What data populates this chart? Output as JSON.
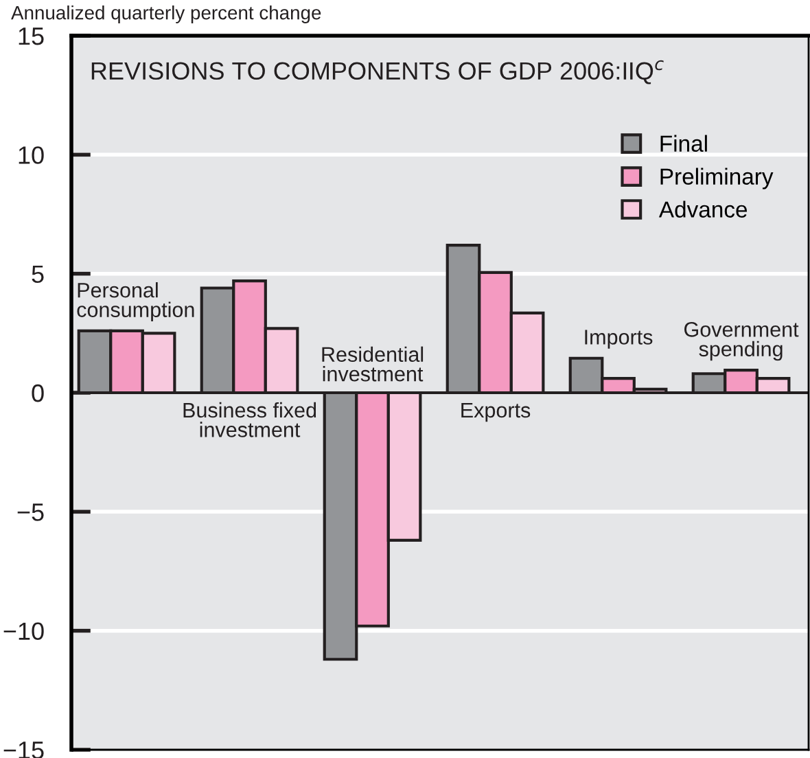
{
  "chart_data": {
    "type": "bar",
    "title": "REVISIONS TO COMPONENTS OF GDP 2006:IIQ$^{c}$",
    "ylabel": "Annualized quarterly percent change",
    "categories": [
      "Personal consumption",
      "Business fixed investment",
      "Residential investment",
      "Exports",
      "Imports",
      "Government spending"
    ],
    "series": [
      {
        "name": "Final",
        "color": "#939598",
        "values": [
          2.6,
          4.4,
          -11.2,
          6.2,
          1.45,
          0.8
        ]
      },
      {
        "name": "Preliminary",
        "color": "#f49ac1",
        "values": [
          2.6,
          4.7,
          -9.8,
          5.05,
          0.6,
          0.95
        ]
      },
      {
        "name": "Advance",
        "color": "#f8c9de",
        "values": [
          2.5,
          2.7,
          -6.2,
          3.35,
          0.15,
          0.6
        ]
      }
    ],
    "ylim": [
      -15,
      15
    ],
    "yticks": [
      {
        "value": -15,
        "label": "−15"
      },
      {
        "value": -10,
        "label": "−10"
      },
      {
        "value": -5,
        "label": "−5"
      },
      0,
      5,
      10,
      15
    ],
    "grid": "y",
    "legend": "top right"
  }
}
